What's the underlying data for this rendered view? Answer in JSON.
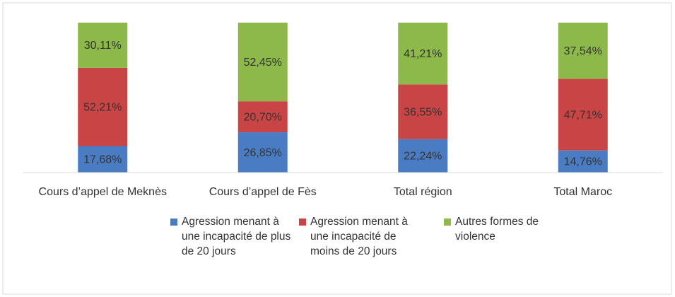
{
  "chart_data": {
    "type": "stacked_bar",
    "categories": [
      "Cours d’appel de Meknès",
      "Cours d’appel de Fès",
      "Total région",
      "Total Maroc"
    ],
    "series": [
      {
        "name": "Agression menant à une incapacité de plus de 20 jours",
        "color": "#4a7cc4",
        "values": [
          17.68,
          26.85,
          22.24,
          14.76
        ],
        "value_labels": [
          "17,68%",
          "26,85%",
          "22,24%",
          "14,76%"
        ]
      },
      {
        "name": "Agression menant à une incapacité de moins de 20 jours",
        "color": "#c94444",
        "values": [
          52.21,
          20.7,
          36.55,
          47.71
        ],
        "value_labels": [
          "52,21%",
          "20,70%",
          "36,55%",
          "47,71%"
        ]
      },
      {
        "name": "Autres formes de violence",
        "color": "#8db84a",
        "values": [
          30.11,
          52.45,
          41.21,
          37.54
        ],
        "value_labels": [
          "30,11%",
          "52,45%",
          "41,21%",
          "37,54%"
        ]
      }
    ],
    "ylim": [
      0,
      100
    ]
  }
}
